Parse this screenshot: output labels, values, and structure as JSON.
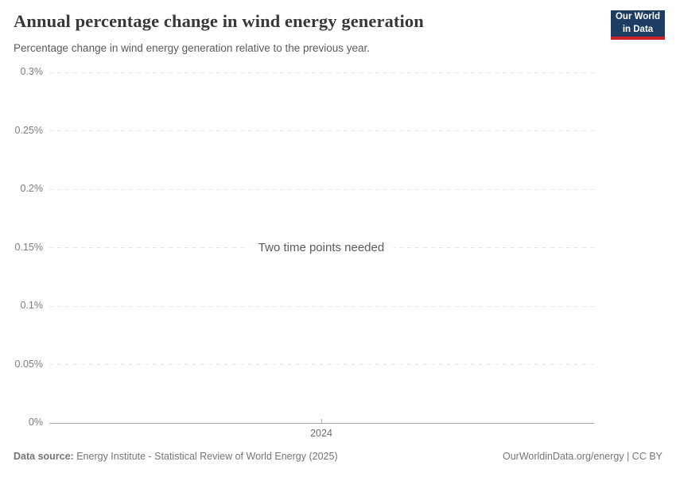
{
  "header": {
    "title": "Annual percentage change in wind energy generation",
    "subtitle": "Percentage change in wind energy generation relative to the previous year.",
    "logo": {
      "line1": "Our World",
      "line2": "in Data"
    }
  },
  "chart_data": {
    "type": "line",
    "title": "Annual percentage change in wind energy generation",
    "empty_state_message": "Two time points needed",
    "series": [],
    "x_tick_labels": [
      "2024"
    ],
    "y_tick_labels": [
      "0%",
      "0.05%",
      "0.1%",
      "0.15%",
      "0.2%",
      "0.25%",
      "0.3%"
    ],
    "ylim": [
      0,
      0.3
    ],
    "y_unit": "%",
    "grid": "horizontal-dashed",
    "legend": "none",
    "note": "empty chart state - no data points plotted"
  },
  "footer": {
    "source_label": "Data source:",
    "source_text": "Energy Institute - Statistical Review of World Energy (2025)",
    "credit": "OurWorldinData.org/energy | CC BY"
  },
  "colors": {
    "title": "#383838",
    "subtitle": "#5b5b5b",
    "gridline": "#e6e6e6",
    "axis": "#a8a8a8",
    "tick_label": "#7d7d7d",
    "x_label": "#6e6e6e",
    "message": "#5b5b5b",
    "footer": "#757575",
    "logo_bg": "#1d3d63",
    "logo_bar": "#cf2128"
  }
}
